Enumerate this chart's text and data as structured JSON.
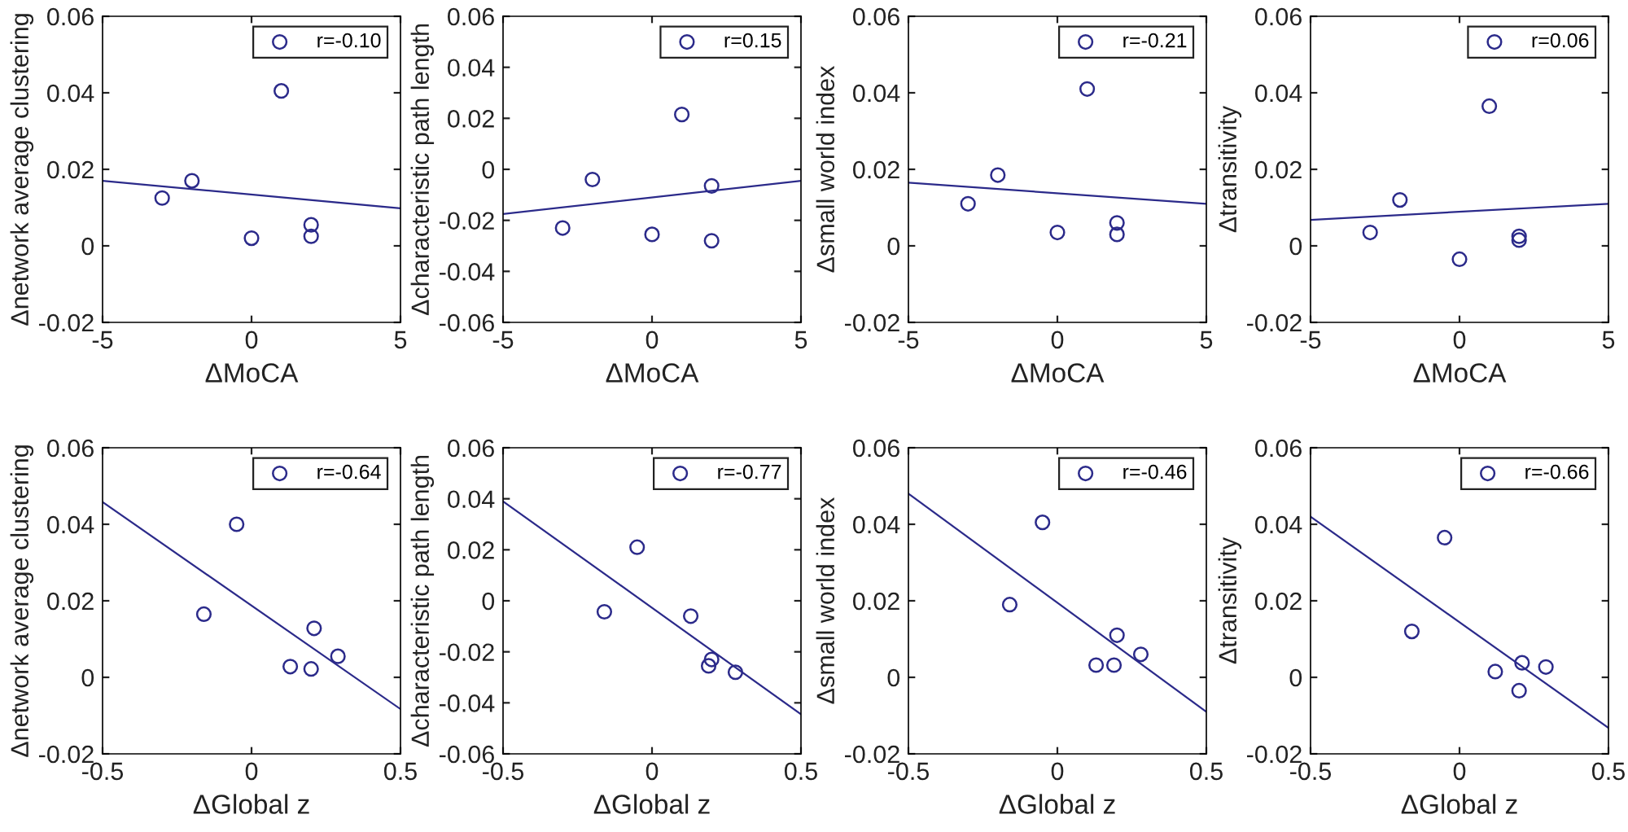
{
  "chart_data": [
    {
      "type": "scatter",
      "xlabel": "ΔMoCA",
      "ylabel": "Δnetwork average clustering",
      "xlim": [
        -5,
        5
      ],
      "xticks": [
        -5,
        0,
        5
      ],
      "ylim": [
        -0.02,
        0.06
      ],
      "yticks": [
        -0.02,
        0,
        0.02,
        0.04,
        0.06
      ],
      "grid": false,
      "legend": "top right",
      "series": [
        {
          "type": "scatter",
          "marker": "circle",
          "name": "r=-0.10",
          "color": "#2b2a8a",
          "x": [
            -3,
            -2,
            0,
            1,
            2,
            2
          ],
          "values": [
            0.0125,
            0.017,
            0.002,
            0.0405,
            0.0055,
            0.0025
          ]
        },
        {
          "type": "line",
          "color": "#2b2a8a",
          "x": [
            -5,
            5
          ],
          "values": [
            0.017,
            0.0098
          ]
        }
      ]
    },
    {
      "type": "scatter",
      "xlabel": "ΔMoCA",
      "ylabel": "Δcharacteristic path length",
      "xlim": [
        -5,
        5
      ],
      "xticks": [
        -5,
        0,
        5
      ],
      "ylim": [
        -0.06,
        0.06
      ],
      "yticks": [
        -0.06,
        -0.04,
        -0.02,
        0,
        0.02,
        0.04,
        0.06
      ],
      "grid": false,
      "legend": "top right",
      "series": [
        {
          "type": "scatter",
          "marker": "circle",
          "name": "r=0.15",
          "color": "#2b2a8a",
          "x": [
            -3,
            -2,
            0,
            1,
            2,
            2
          ],
          "values": [
            -0.023,
            -0.004,
            -0.0255,
            0.0215,
            -0.0065,
            -0.028
          ]
        },
        {
          "type": "line",
          "color": "#2b2a8a",
          "x": [
            -5,
            5
          ],
          "values": [
            -0.0175,
            -0.0045
          ]
        }
      ]
    },
    {
      "type": "scatter",
      "xlabel": "ΔMoCA",
      "ylabel": "Δsmall world index",
      "xlim": [
        -5,
        5
      ],
      "xticks": [
        -5,
        0,
        5
      ],
      "ylim": [
        -0.02,
        0.06
      ],
      "yticks": [
        -0.02,
        0,
        0.02,
        0.04,
        0.06
      ],
      "grid": false,
      "legend": "top right",
      "series": [
        {
          "type": "scatter",
          "marker": "circle",
          "name": "r=-0.21",
          "color": "#2b2a8a",
          "x": [
            -3,
            -2,
            0,
            1,
            2,
            2
          ],
          "values": [
            0.011,
            0.0185,
            0.0035,
            0.041,
            0.006,
            0.003
          ]
        },
        {
          "type": "line",
          "color": "#2b2a8a",
          "x": [
            -5,
            5
          ],
          "values": [
            0.0165,
            0.011
          ]
        }
      ]
    },
    {
      "type": "scatter",
      "xlabel": "ΔMoCA",
      "ylabel": "Δtransitivity",
      "xlim": [
        -5,
        5
      ],
      "xticks": [
        -5,
        0,
        5
      ],
      "ylim": [
        -0.02,
        0.06
      ],
      "yticks": [
        -0.02,
        0,
        0.02,
        0.04,
        0.06
      ],
      "grid": false,
      "legend": "top right",
      "series": [
        {
          "type": "scatter",
          "marker": "circle",
          "name": "r=0.06",
          "color": "#2b2a8a",
          "x": [
            -3,
            -2,
            0,
            1,
            2,
            2
          ],
          "values": [
            0.0035,
            0.012,
            -0.0035,
            0.0365,
            0.0025,
            0.0015
          ]
        },
        {
          "type": "line",
          "color": "#2b2a8a",
          "x": [
            -5,
            5
          ],
          "values": [
            0.0068,
            0.011
          ]
        }
      ]
    },
    {
      "type": "scatter",
      "xlabel": "ΔGlobal z",
      "ylabel": "Δnetwork average clustering",
      "xlim": [
        -0.5,
        0.5
      ],
      "xticks": [
        -0.5,
        0,
        0.5
      ],
      "ylim": [
        -0.02,
        0.06
      ],
      "yticks": [
        -0.02,
        0,
        0.02,
        0.04,
        0.06
      ],
      "grid": false,
      "legend": "top right",
      "series": [
        {
          "type": "scatter",
          "marker": "circle",
          "name": "r=-0.64",
          "color": "#2b2a8a",
          "x": [
            -0.16,
            -0.05,
            0.13,
            0.2,
            0.21,
            0.29
          ],
          "values": [
            0.0165,
            0.04,
            0.0028,
            0.0022,
            0.0128,
            0.0055
          ]
        },
        {
          "type": "line",
          "color": "#2b2a8a",
          "x": [
            -0.5,
            0.5
          ],
          "values": [
            0.0458,
            -0.0083
          ]
        }
      ]
    },
    {
      "type": "scatter",
      "xlabel": "ΔGlobal z",
      "ylabel": "Δcharacteristic path length",
      "xlim": [
        -0.5,
        0.5
      ],
      "xticks": [
        -0.5,
        0,
        0.5
      ],
      "ylim": [
        -0.06,
        0.06
      ],
      "yticks": [
        -0.06,
        -0.04,
        -0.02,
        0,
        0.02,
        0.04,
        0.06
      ],
      "grid": false,
      "legend": "top right",
      "series": [
        {
          "type": "scatter",
          "marker": "circle",
          "name": "r=-0.77",
          "color": "#2b2a8a",
          "x": [
            -0.16,
            -0.05,
            0.13,
            0.19,
            0.2,
            0.28
          ],
          "values": [
            -0.0043,
            0.021,
            -0.006,
            -0.0255,
            -0.023,
            -0.028
          ]
        },
        {
          "type": "line",
          "color": "#2b2a8a",
          "x": [
            -0.5,
            0.5
          ],
          "values": [
            0.039,
            -0.0445
          ]
        }
      ]
    },
    {
      "type": "scatter",
      "xlabel": "ΔGlobal z",
      "ylabel": "Δsmall world index",
      "xlim": [
        -0.5,
        0.5
      ],
      "xticks": [
        -0.5,
        0,
        0.5
      ],
      "ylim": [
        -0.02,
        0.06
      ],
      "yticks": [
        -0.02,
        0,
        0.02,
        0.04,
        0.06
      ],
      "grid": false,
      "legend": "top right",
      "series": [
        {
          "type": "scatter",
          "marker": "circle",
          "name": "r=-0.46",
          "color": "#2b2a8a",
          "x": [
            -0.16,
            -0.05,
            0.13,
            0.19,
            0.2,
            0.28
          ],
          "values": [
            0.019,
            0.0405,
            0.0032,
            0.0032,
            0.011,
            0.006
          ]
        },
        {
          "type": "line",
          "color": "#2b2a8a",
          "x": [
            -0.5,
            0.5
          ],
          "values": [
            0.048,
            -0.009
          ]
        }
      ]
    },
    {
      "type": "scatter",
      "xlabel": "ΔGlobal z",
      "ylabel": "Δtransitivity",
      "xlim": [
        -0.5,
        0.5
      ],
      "xticks": [
        -0.5,
        0,
        0.5
      ],
      "ylim": [
        -0.02,
        0.06
      ],
      "yticks": [
        -0.02,
        0,
        0.02,
        0.04,
        0.06
      ],
      "grid": false,
      "legend": "top right",
      "series": [
        {
          "type": "scatter",
          "marker": "circle",
          "name": "r=-0.66",
          "color": "#2b2a8a",
          "x": [
            -0.16,
            -0.05,
            0.12,
            0.2,
            0.21,
            0.29
          ],
          "values": [
            0.012,
            0.0365,
            0.0015,
            -0.0035,
            0.0038,
            0.0027
          ]
        },
        {
          "type": "line",
          "color": "#2b2a8a",
          "x": [
            -0.5,
            0.5
          ],
          "values": [
            0.042,
            -0.0132
          ]
        }
      ]
    }
  ]
}
